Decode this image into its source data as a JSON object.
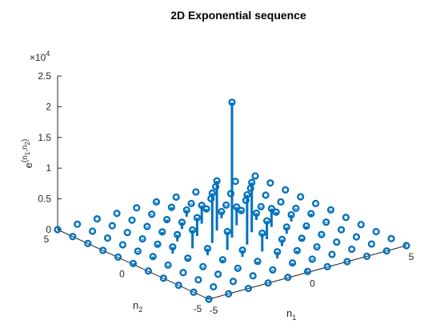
{
  "chart_data": {
    "type": "stem3",
    "title": "2D Exponential sequence",
    "xlabel": {
      "main": "n",
      "sub": "1"
    },
    "ylabel": {
      "main": "n",
      "sub": "2"
    },
    "zlabel": {
      "main": "e",
      "sup": "(n",
      "sub1": "1",
      "mid": ",n",
      "sub2": "2",
      "end": ")"
    },
    "exponent_label": {
      "base": "×10",
      "power": "4"
    },
    "n1_range": [
      -5,
      5
    ],
    "n2_range": [
      -5,
      5
    ],
    "function": "exp(10 - |n1| - |n2|)",
    "zlim": [
      0,
      25000
    ],
    "x_ticks": [
      "-5",
      "0",
      "5"
    ],
    "y_ticks": [
      "-5",
      "0",
      "5"
    ],
    "z_ticks": [
      "0",
      "0.5",
      "1",
      "1.5",
      "2",
      "2.5"
    ],
    "z_tick_values": [
      0,
      5000,
      10000,
      15000,
      20000,
      25000
    ],
    "color": "#0072BD",
    "marker": "open-circle",
    "grid": false
  }
}
